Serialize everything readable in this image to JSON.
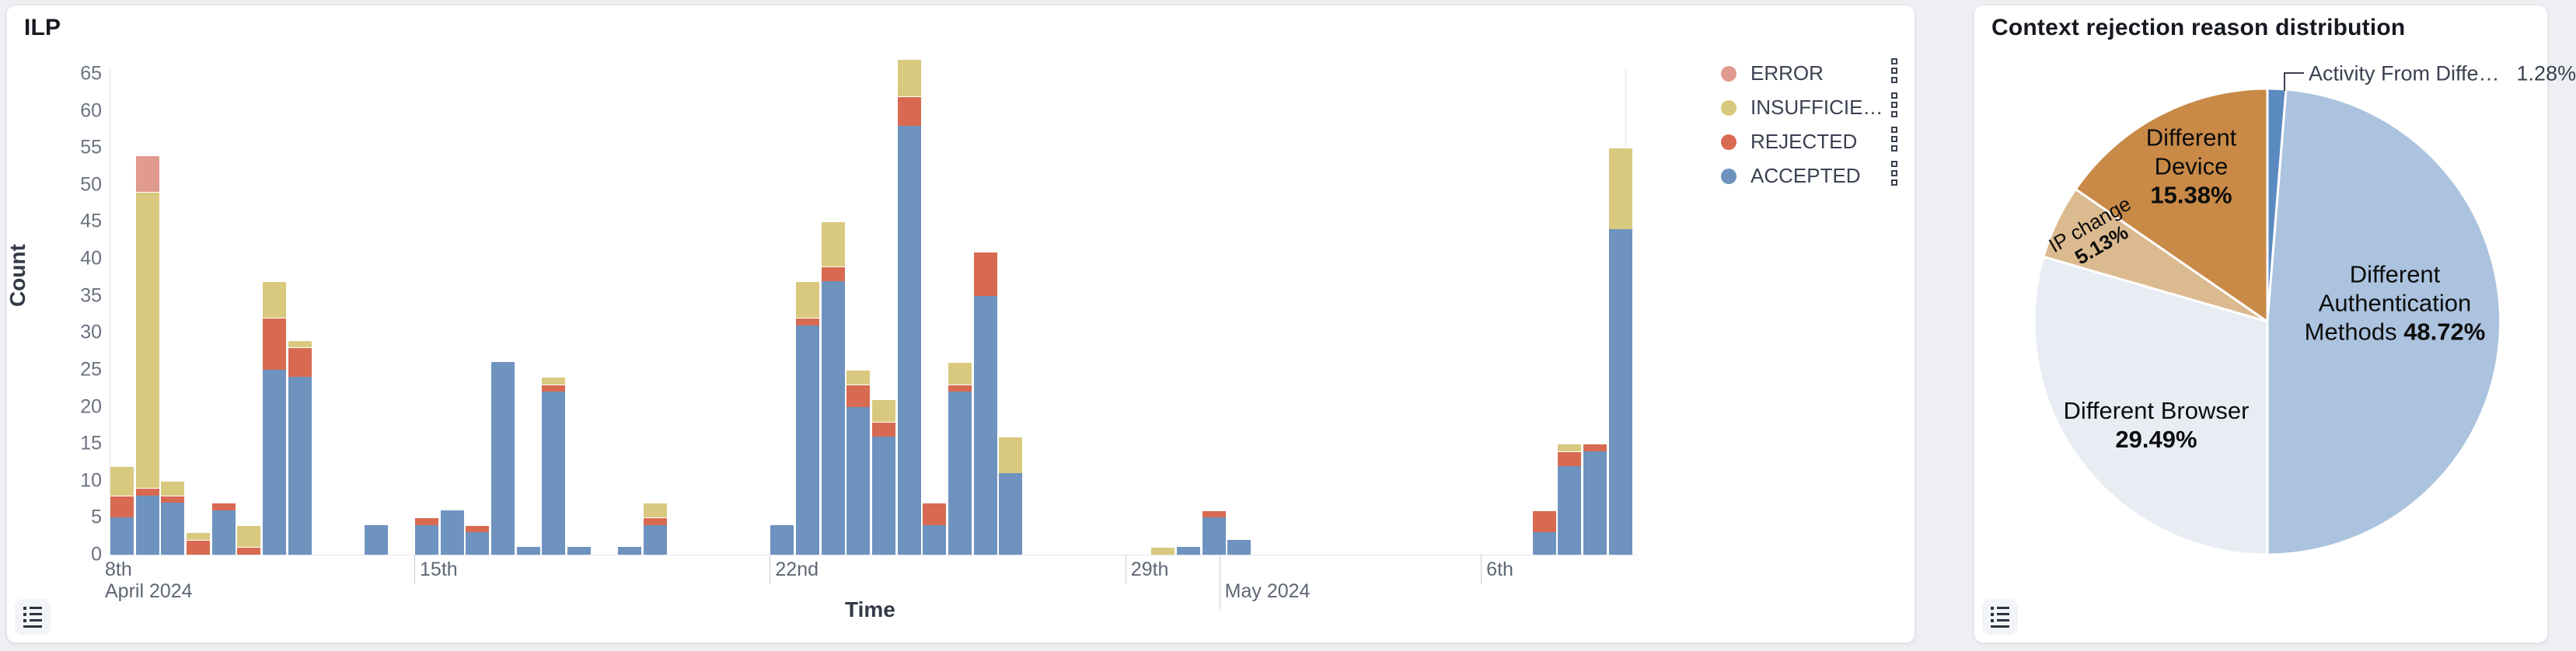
{
  "left_card": {
    "title": "ILP",
    "y_axis_label": "Count",
    "x_axis_label": "Time",
    "legend": [
      {
        "label": "ERROR",
        "color": "#e09a8e"
      },
      {
        "label": "INSUFFICIE…",
        "color": "#d9c97f"
      },
      {
        "label": "REJECTED",
        "color": "#d76a51"
      },
      {
        "label": "ACCEPTED",
        "color": "#6e93bf"
      }
    ]
  },
  "right_card": {
    "title": "Context rejection reason distribution"
  },
  "chart_data": [
    {
      "type": "bar",
      "stacked": true,
      "title": "ILP",
      "xlabel": "Time",
      "ylabel": "Count",
      "ylim": [
        0,
        65
      ],
      "grid": false,
      "legend_position": "right-top",
      "y_ticks": [
        0,
        5,
        10,
        15,
        20,
        25,
        30,
        35,
        40,
        45,
        50,
        55,
        60,
        65
      ],
      "x_ticks": [
        {
          "label": "8th",
          "slot": 0,
          "sub": "April 2024",
          "tick": false
        },
        {
          "label": "15th",
          "slot": 12,
          "tick": true
        },
        {
          "label": "22nd",
          "slot": 26,
          "tick": true
        },
        {
          "label": "29th",
          "slot": 40,
          "tick": true
        },
        {
          "label": "May 2024",
          "slot": 43.7,
          "tick": true,
          "row": 2,
          "long": true
        },
        {
          "label": "6th",
          "slot": 54,
          "tick": true
        }
      ],
      "series_order": [
        "accepted",
        "rejected",
        "insufficient",
        "error"
      ],
      "series_colors": {
        "accepted": "#6e93bf",
        "rejected": "#d76a51",
        "insufficient": "#d9c97f",
        "error": "#e09a8e"
      },
      "bars": [
        {
          "slot": 0,
          "accepted": 5,
          "rejected": 3,
          "insufficient": 4,
          "error": 0
        },
        {
          "slot": 1,
          "accepted": 8,
          "rejected": 1,
          "insufficient": 40,
          "error": 5
        },
        {
          "slot": 2,
          "accepted": 7,
          "rejected": 1,
          "insufficient": 2,
          "error": 0
        },
        {
          "slot": 3,
          "accepted": 0,
          "rejected": 2,
          "insufficient": 1,
          "error": 0
        },
        {
          "slot": 4,
          "accepted": 6,
          "rejected": 1,
          "insufficient": 0,
          "error": 0
        },
        {
          "slot": 5,
          "accepted": 0,
          "rejected": 1,
          "insufficient": 3,
          "error": 0
        },
        {
          "slot": 6,
          "accepted": 25,
          "rejected": 7,
          "insufficient": 5,
          "error": 0
        },
        {
          "slot": 7,
          "accepted": 24,
          "rejected": 4,
          "insufficient": 1,
          "error": 0
        },
        {
          "slot": 10,
          "accepted": 4,
          "rejected": 0,
          "insufficient": 0,
          "error": 0
        },
        {
          "slot": 12,
          "accepted": 4,
          "rejected": 1,
          "insufficient": 0,
          "error": 0
        },
        {
          "slot": 13,
          "accepted": 6,
          "rejected": 0,
          "insufficient": 0,
          "error": 0
        },
        {
          "slot": 14,
          "accepted": 3,
          "rejected": 1,
          "insufficient": 0,
          "error": 0
        },
        {
          "slot": 15,
          "accepted": 26,
          "rejected": 0,
          "insufficient": 0,
          "error": 0
        },
        {
          "slot": 16,
          "accepted": 1,
          "rejected": 0,
          "insufficient": 0,
          "error": 0
        },
        {
          "slot": 17,
          "accepted": 22,
          "rejected": 1,
          "insufficient": 1,
          "error": 0
        },
        {
          "slot": 18,
          "accepted": 1,
          "rejected": 0,
          "insufficient": 0,
          "error": 0
        },
        {
          "slot": 20,
          "accepted": 1,
          "rejected": 0,
          "insufficient": 0,
          "error": 0
        },
        {
          "slot": 21,
          "accepted": 4,
          "rejected": 1,
          "insufficient": 2,
          "error": 0
        },
        {
          "slot": 26,
          "accepted": 4,
          "rejected": 0,
          "insufficient": 0,
          "error": 0
        },
        {
          "slot": 27,
          "accepted": 31,
          "rejected": 1,
          "insufficient": 5,
          "error": 0
        },
        {
          "slot": 28,
          "accepted": 37,
          "rejected": 2,
          "insufficient": 6,
          "error": 0
        },
        {
          "slot": 29,
          "accepted": 20,
          "rejected": 3,
          "insufficient": 2,
          "error": 0
        },
        {
          "slot": 30,
          "accepted": 16,
          "rejected": 2,
          "insufficient": 3,
          "error": 0
        },
        {
          "slot": 31,
          "accepted": 58,
          "rejected": 4,
          "insufficient": 5,
          "error": 0
        },
        {
          "slot": 32,
          "accepted": 4,
          "rejected": 3,
          "insufficient": 0,
          "error": 0
        },
        {
          "slot": 33,
          "accepted": 22,
          "rejected": 1,
          "insufficient": 3,
          "error": 0
        },
        {
          "slot": 34,
          "accepted": 35,
          "rejected": 6,
          "insufficient": 0,
          "error": 0
        },
        {
          "slot": 35,
          "accepted": 11,
          "rejected": 0,
          "insufficient": 5,
          "error": 0
        },
        {
          "slot": 41,
          "accepted": 0,
          "rejected": 0,
          "insufficient": 1,
          "error": 0
        },
        {
          "slot": 42,
          "accepted": 1,
          "rejected": 0,
          "insufficient": 0,
          "error": 0
        },
        {
          "slot": 43,
          "accepted": 5,
          "rejected": 1,
          "insufficient": 0,
          "error": 0
        },
        {
          "slot": 44,
          "accepted": 2,
          "rejected": 0,
          "insufficient": 0,
          "error": 0
        },
        {
          "slot": 56,
          "accepted": 3,
          "rejected": 3,
          "insufficient": 0,
          "error": 0
        },
        {
          "slot": 57,
          "accepted": 12,
          "rejected": 2,
          "insufficient": 1,
          "error": 0
        },
        {
          "slot": 58,
          "accepted": 14,
          "rejected": 1,
          "insufficient": 0,
          "error": 0
        },
        {
          "slot": 59,
          "accepted": 44,
          "rejected": 0,
          "insufficient": 11,
          "error": 0
        }
      ]
    },
    {
      "type": "pie",
      "title": "Context rejection reason distribution",
      "start_angle_deg": 0,
      "clockwise": true,
      "slices": [
        {
          "name": "Activity From Diffe…",
          "value": 1.28,
          "pct_label": "1.28%",
          "color": "#5b8ac1",
          "label_style": "callout"
        },
        {
          "name": "Different Authentication Methods",
          "value": 48.72,
          "pct_label": "48.72%",
          "color": "#abc3de",
          "label_lines": [
            "Different",
            "Authentication",
            "Methods"
          ],
          "pct_inline": true
        },
        {
          "name": "Different Browser",
          "value": 29.49,
          "pct_label": "29.49%",
          "color": "#e8ecf3",
          "label_lines": [
            "Different Browser"
          ]
        },
        {
          "name": "IP change",
          "value": 5.13,
          "pct_label": "5.13%",
          "color": "#dcba8f",
          "label_lines": [
            "IP change"
          ],
          "rotate": -30
        },
        {
          "name": "Different Device",
          "value": 15.38,
          "pct_label": "15.38%",
          "color": "#c98a47",
          "label_lines": [
            "Different",
            "Device"
          ]
        }
      ]
    }
  ]
}
